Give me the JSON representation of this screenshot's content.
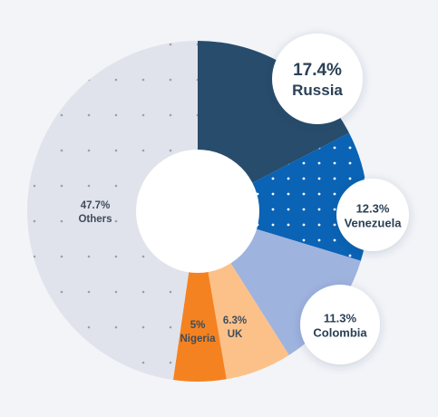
{
  "chart_data": {
    "type": "pie",
    "variant": "donut",
    "slices": [
      {
        "label": "Russia",
        "value": 17.4,
        "display": "17.4%",
        "color": "#284c6b",
        "pattern": "none",
        "callout": "bubble-large"
      },
      {
        "label": "Venezuela",
        "value": 12.3,
        "display": "12.3%",
        "color": "#0a63b4",
        "pattern": "dots-white",
        "callout": "bubble"
      },
      {
        "label": "Colombia",
        "value": 11.3,
        "display": "11.3%",
        "color": "#9fb3df",
        "pattern": "none",
        "callout": "bubble"
      },
      {
        "label": "UK",
        "value": 6.3,
        "display": "6.3%",
        "color": "#fbc189",
        "pattern": "none",
        "callout": "inside"
      },
      {
        "label": "Nigeria",
        "value": 5,
        "display": "5%",
        "color": "#f58220",
        "pattern": "none",
        "callout": "inside"
      },
      {
        "label": "Others",
        "value": 47.7,
        "display": "47.7%",
        "color": "#e1e3ec",
        "pattern": "dots-grey",
        "callout": "inside"
      }
    ],
    "start_angle": "12 o'clock",
    "direction": "clockwise",
    "legend": "none"
  }
}
